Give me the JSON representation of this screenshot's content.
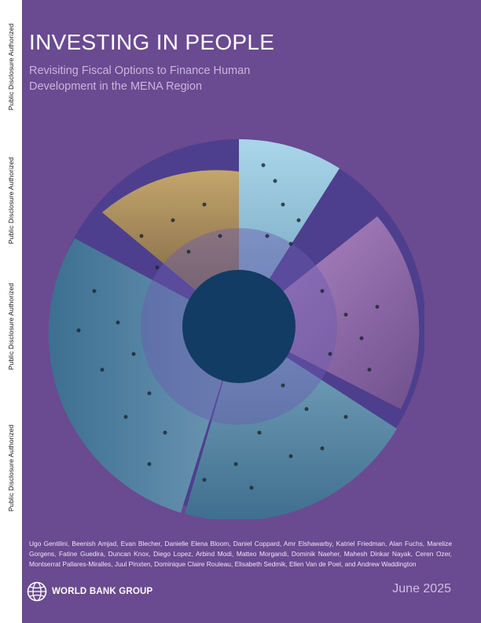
{
  "sidebar": {
    "disclosure_labels": [
      "Public Disclosure Authorized",
      "Public Disclosure Authorized",
      "Public Disclosure Authorized",
      "Public Disclosure Authorized"
    ]
  },
  "header": {
    "title": "INVESTING IN PEOPLE",
    "subtitle": "Revisiting Fiscal Options to Finance Human Development in the MENA Region"
  },
  "authors": "Ugo Gentilini, Beenish Amjad, Evan Blecher, Danielle Elena Bloom, Daniel Coppard, Amr Elshawarby, Katriel Friedman, Alan Fuchs, Marelize Gorgens, Fatine Guedira, Duncan Knox, Diego Lopez, Arbind Modi, Matteo Morgandi, Dominik Naeher, Mahesh Dinkar Nayak, Ceren Ozer, Montserrat Pallares-Miralles, Juul Pinxten, Dominique Claire Rouleau, Elisabeth Sedmik, Ellen Van de Poel, and Andrew Waddington",
  "footer": {
    "logo_text": "WORLD BANK GROUP",
    "date": "June 2025"
  },
  "colors": {
    "background": "#6a4a90",
    "ring": "#4d3f8e",
    "center": "#123c63",
    "segment_top": "#9ccbe0",
    "segment_right": "#a07ab8",
    "segment_bottom": "#5d8ca8",
    "segment_left": "#4f86a8",
    "segment_tan": "#a88c5a"
  }
}
